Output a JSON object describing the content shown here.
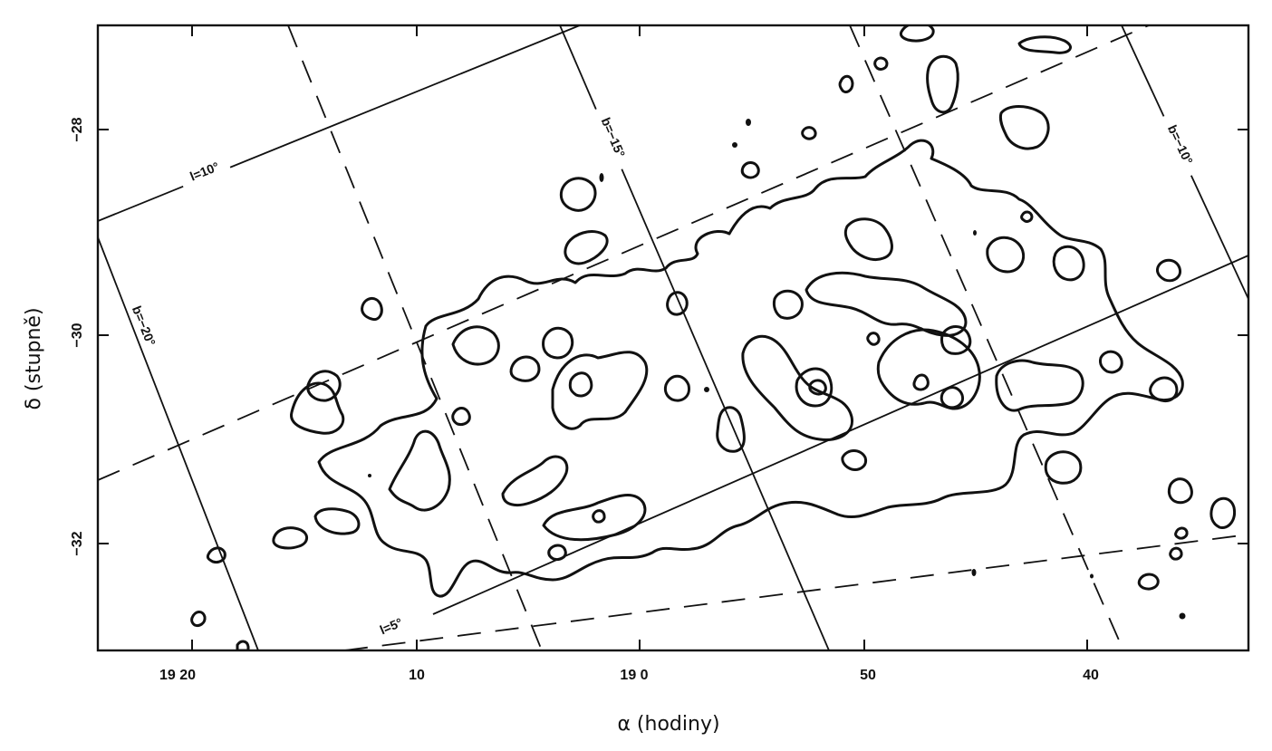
{
  "chart_data": {
    "type": "contour",
    "xlabel": "α (hodiny)",
    "ylabel": "δ (stupně)",
    "x_ticks": [
      {
        "value": "19 20",
        "label": "19 20"
      },
      {
        "value": "19 10",
        "label": "10"
      },
      {
        "value": "19 00",
        "label": "19 0"
      },
      {
        "value": "18 50",
        "label": "50"
      },
      {
        "value": "18 40",
        "label": "40"
      }
    ],
    "y_ticks": [
      {
        "value": -28,
        "label": "−28"
      },
      {
        "value": -30,
        "label": "−30"
      },
      {
        "value": -32,
        "label": "−32"
      }
    ],
    "coordinate_grid": {
      "galactic_longitude": [
        {
          "label": "l=10°",
          "style": "solid"
        },
        {
          "label": "l=5°",
          "style": "solid"
        }
      ],
      "galactic_latitude": [
        {
          "label": "b=−20°",
          "style": "solid"
        },
        {
          "label": "b=−15°",
          "style": "solid"
        },
        {
          "label": "b=−10°",
          "style": "solid"
        }
      ],
      "dashed_lines": "intermediate galactic grid lines"
    },
    "grid": false,
    "legend": "none"
  }
}
